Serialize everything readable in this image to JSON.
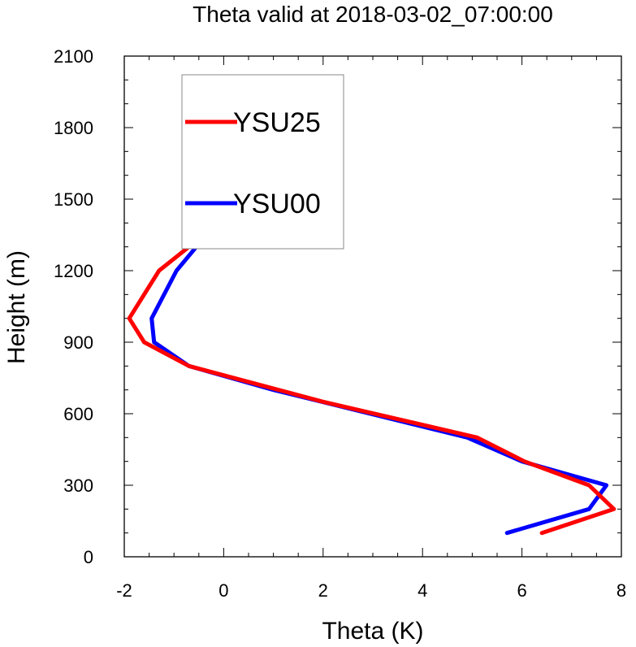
{
  "chart_data": {
    "type": "line",
    "title": "Theta valid at 2018-03-02_07:00:00",
    "xlabel": "Theta (K)",
    "ylabel": "Height (m)",
    "xlim": [
      -2,
      8
    ],
    "ylim": [
      0,
      2100
    ],
    "x_ticks": [
      "-2",
      "0",
      "2",
      "4",
      "6",
      "8"
    ],
    "y_ticks": [
      "0",
      "300",
      "600",
      "900",
      "1200",
      "1500",
      "1800",
      "2100"
    ],
    "grid": false,
    "legend_position": "top-left",
    "series": [
      {
        "name": "YSU25",
        "color": "#ff0000",
        "x": [
          6.4,
          7.85,
          7.35,
          6.05,
          5.1,
          2.0,
          -0.7,
          -1.6,
          -1.9,
          -1.3,
          -0.7,
          -0.4,
          -0.3,
          -0.2,
          -0.12,
          -0.1,
          -0.05,
          -0.02,
          0.0
        ],
        "y": [
          100,
          200,
          300,
          400,
          500,
          650,
          800,
          900,
          1000,
          1200,
          1300,
          1400,
          1500,
          1600,
          1700,
          1800,
          1900,
          1950,
          2000
        ]
      },
      {
        "name": "YSU00",
        "color": "#0000ff",
        "x": [
          5.7,
          7.35,
          7.7,
          6.0,
          4.9,
          1.0,
          -0.7,
          -1.4,
          -1.45,
          -0.95,
          -0.55,
          -0.3,
          -0.2,
          -0.12,
          -0.08,
          -0.05,
          -0.03,
          -0.01,
          0.0
        ],
        "y": [
          100,
          200,
          300,
          400,
          500,
          700,
          800,
          900,
          1000,
          1200,
          1300,
          1400,
          1500,
          1600,
          1700,
          1800,
          1900,
          1950,
          2000
        ]
      }
    ]
  }
}
